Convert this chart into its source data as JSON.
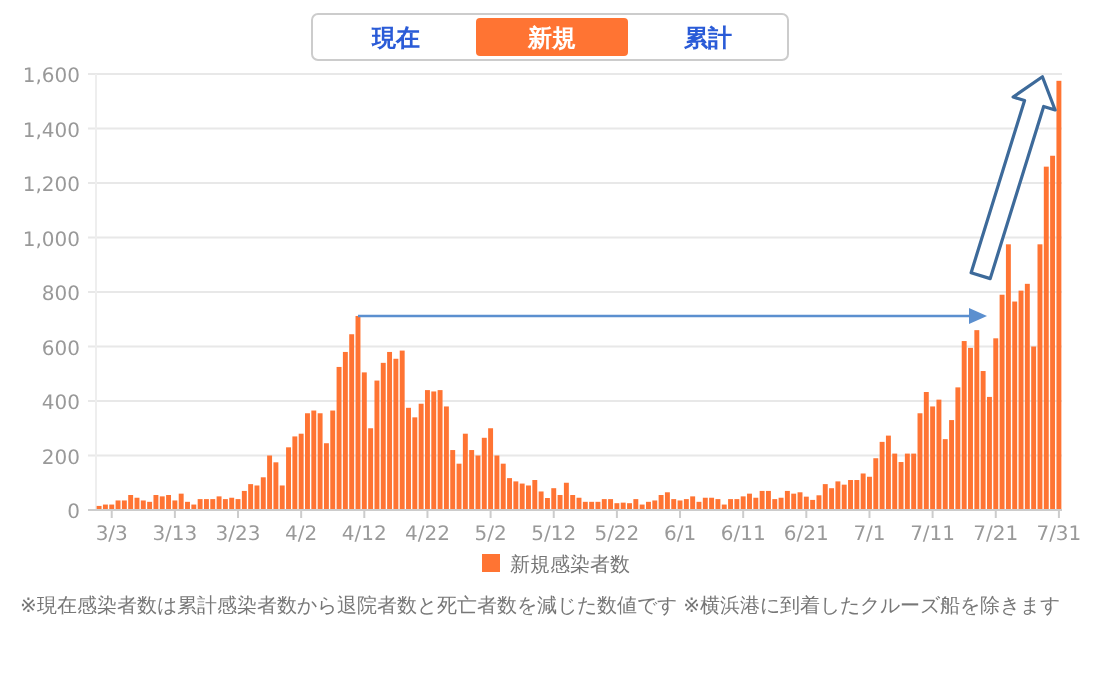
{
  "chart_data": {
    "type": "bar",
    "categories": [
      null,
      null,
      "3/3",
      null,
      null,
      null,
      null,
      null,
      null,
      null,
      null,
      null,
      "3/13",
      null,
      null,
      null,
      null,
      null,
      null,
      null,
      null,
      null,
      "3/23",
      null,
      null,
      null,
      null,
      null,
      null,
      null,
      null,
      null,
      "4/2",
      null,
      null,
      null,
      null,
      null,
      null,
      null,
      null,
      null,
      "4/12",
      null,
      null,
      null,
      null,
      null,
      null,
      null,
      null,
      null,
      "4/22",
      null,
      null,
      null,
      null,
      null,
      null,
      null,
      null,
      null,
      "5/2",
      null,
      null,
      null,
      null,
      null,
      null,
      null,
      null,
      null,
      "5/12",
      null,
      null,
      null,
      null,
      null,
      null,
      null,
      null,
      null,
      "5/22",
      null,
      null,
      null,
      null,
      null,
      null,
      null,
      null,
      null,
      "6/1",
      null,
      null,
      null,
      null,
      null,
      null,
      null,
      null,
      null,
      "6/11",
      null,
      null,
      null,
      null,
      null,
      null,
      null,
      null,
      null,
      "6/21",
      null,
      null,
      null,
      null,
      null,
      null,
      null,
      null,
      null,
      "7/1",
      null,
      null,
      null,
      null,
      null,
      null,
      null,
      null,
      null,
      "7/11",
      null,
      null,
      null,
      null,
      null,
      null,
      null,
      null,
      null,
      "7/21",
      null,
      null,
      null,
      null,
      null,
      null,
      null,
      null,
      null,
      "7/31"
    ],
    "series": [
      {
        "name": "新規感染者数",
        "color": "#ff7433",
        "values": [
          15,
          20,
          20,
          35,
          35,
          55,
          45,
          35,
          30,
          55,
          50,
          55,
          35,
          60,
          30,
          20,
          40,
          40,
          40,
          50,
          40,
          45,
          40,
          70,
          95,
          90,
          120,
          200,
          175,
          90,
          230,
          270,
          280,
          355,
          365,
          355,
          245,
          365,
          525,
          580,
          645,
          712,
          505,
          300,
          475,
          540,
          580,
          555,
          585,
          375,
          340,
          390,
          440,
          435,
          440,
          380,
          220,
          170,
          280,
          220,
          200,
          265,
          300,
          200,
          170,
          117,
          105,
          97,
          90,
          110,
          68,
          44,
          80,
          55,
          100,
          55,
          45,
          30,
          30,
          30,
          40,
          40,
          25,
          27,
          25,
          40,
          20,
          30,
          35,
          55,
          65,
          40,
          35,
          40,
          50,
          30,
          45,
          45,
          40,
          20,
          40,
          40,
          50,
          60,
          45,
          70,
          70,
          40,
          45,
          70,
          60,
          65,
          49,
          37,
          54,
          95,
          80,
          105,
          93,
          110,
          110,
          134,
          122,
          190,
          250,
          273,
          207,
          176,
          207,
          207,
          355,
          433,
          380,
          405,
          260,
          330,
          450,
          620,
          595,
          660,
          510,
          415,
          630,
          790,
          975,
          765,
          805,
          830,
          600,
          975,
          1260,
          1300,
          1575
        ]
      }
    ],
    "ylim": [
      0,
      1600
    ],
    "yticks": [
      0,
      200,
      400,
      600,
      800,
      {
        "value": 1000,
        "label": "1,000"
      },
      {
        "value": 1200,
        "label": "1,200"
      },
      {
        "value": 1400,
        "label": "1,400"
      },
      {
        "value": 1600,
        "label": "1,600"
      }
    ],
    "grid": "y",
    "legend": "bottom",
    "annotations": [
      "現在",
      "新規",
      "累計",
      "※現在感染者数は累計感染者数から退院者数と死亡者数を減じた数値です",
      "※横浜港に到着したクルーズ船を除きます"
    ]
  }
}
